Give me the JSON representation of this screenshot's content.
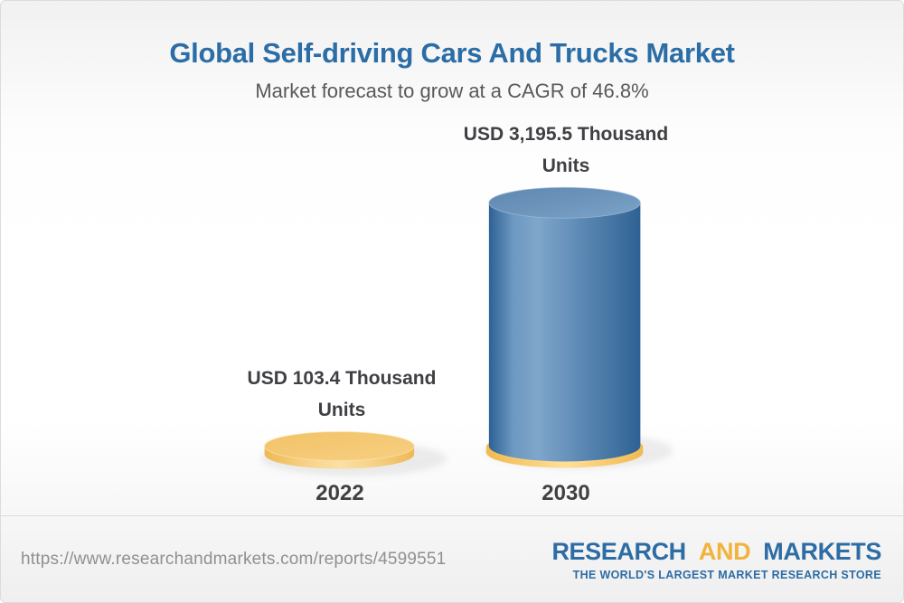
{
  "header": {
    "title": "Global Self-driving Cars And Trucks Market",
    "subtitle": "Market forecast to grow at a CAGR of 46.8%"
  },
  "chart_data": {
    "type": "bar",
    "title": "Global Self-driving Cars And Trucks Market",
    "subtitle": "Market forecast to grow at a CAGR of 46.8%",
    "categories": [
      "2022",
      "2030"
    ],
    "values": [
      103.4,
      3195.5
    ],
    "unit": "USD Thousand Units",
    "cagr_percent": 46.8,
    "value_labels": [
      {
        "line1": "USD 103.4 Thousand",
        "line2": "Units"
      },
      {
        "line1": "USD 3,195.5 Thousand",
        "line2": "Units"
      }
    ],
    "bar_styles": [
      "gold",
      "blue"
    ],
    "legend": false,
    "grid": false,
    "axes_shown": false
  },
  "footer": {
    "url": "https://www.researchandmarkets.com/reports/4599551",
    "logo": {
      "word1": "RESEARCH",
      "word2": "AND",
      "word3": "MARKETS",
      "tagline": "THE WORLD'S LARGEST MARKET RESEARCH STORE"
    }
  },
  "colors": {
    "title": "#2b6da6",
    "subtitle": "#58595b",
    "value_label": "#3f4043",
    "year_label": "#414042",
    "url_text": "#8f9091",
    "logo_blue": "#2d6ca4",
    "logo_gold": "#f1b33c",
    "bar_blue": "#4b7dad",
    "bar_gold": "#f5c878"
  }
}
